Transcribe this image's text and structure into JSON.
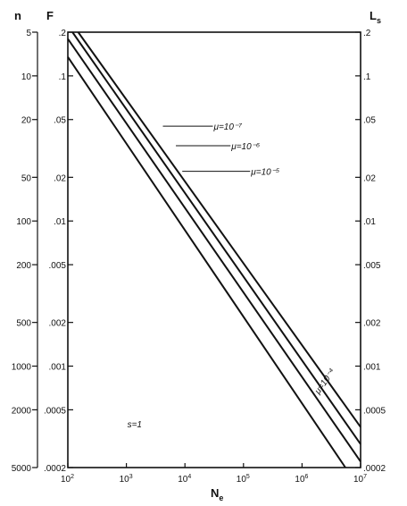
{
  "chart_data": {
    "type": "line",
    "x_scale": "log",
    "y_scale": "log",
    "xlim": [
      100,
      10000000
    ],
    "ylim": [
      0.0002,
      0.2
    ],
    "x_ticks": [
      {
        "value": 100,
        "base": "10",
        "exp": "2"
      },
      {
        "value": 1000,
        "base": "10",
        "exp": "3"
      },
      {
        "value": 10000,
        "base": "10",
        "exp": "4"
      },
      {
        "value": 100000,
        "base": "10",
        "exp": "5"
      },
      {
        "value": 1000000,
        "base": "10",
        "exp": "6"
      },
      {
        "value": 10000000,
        "base": "10",
        "exp": "7"
      }
    ],
    "x_label_main": "N",
    "x_label_sub": "e",
    "left_axis_n": {
      "title": "n",
      "ticks": [
        {
          "y": 0.2,
          "label": "5"
        },
        {
          "y": 0.1,
          "label": "10"
        },
        {
          "y": 0.05,
          "label": "20"
        },
        {
          "y": 0.02,
          "label": "50"
        },
        {
          "y": 0.01,
          "label": "100"
        },
        {
          "y": 0.005,
          "label": "200"
        },
        {
          "y": 0.002,
          "label": "500"
        },
        {
          "y": 0.001,
          "label": "1000"
        },
        {
          "y": 0.0005,
          "label": "2000"
        },
        {
          "y": 0.0002,
          "label": "5000"
        }
      ]
    },
    "left_axis_F": {
      "title": "F",
      "ticks": [
        {
          "y": 0.2,
          "label": ".2"
        },
        {
          "y": 0.1,
          "label": ".1"
        },
        {
          "y": 0.05,
          "label": ".05"
        },
        {
          "y": 0.02,
          "label": ".02"
        },
        {
          "y": 0.01,
          "label": ".01"
        },
        {
          "y": 0.005,
          "label": ".005"
        },
        {
          "y": 0.002,
          "label": ".002"
        },
        {
          "y": 0.001,
          "label": ".001"
        },
        {
          "y": 0.0005,
          "label": ".0005"
        },
        {
          "y": 0.0002,
          "label": ".0002"
        }
      ]
    },
    "right_axis_Ls": {
      "title_main": "L",
      "title_sub": "s",
      "ticks": [
        {
          "y": 0.2,
          "label": ".2"
        },
        {
          "y": 0.1,
          "label": ".1"
        },
        {
          "y": 0.05,
          "label": ".05"
        },
        {
          "y": 0.02,
          "label": ".02"
        },
        {
          "y": 0.01,
          "label": ".01"
        },
        {
          "y": 0.005,
          "label": ".005"
        },
        {
          "y": 0.002,
          "label": ".002"
        },
        {
          "y": 0.001,
          "label": ".001"
        },
        {
          "y": 0.0005,
          "label": ".0005"
        },
        {
          "y": 0.0002,
          "label": ".0002"
        }
      ]
    },
    "series": [
      {
        "key": "mu-1e-7",
        "points": [
          [
            150,
            0.2
          ],
          [
            10000000,
            0.00038
          ]
        ]
      },
      {
        "key": "mu-1e-6",
        "points": [
          [
            120,
            0.2
          ],
          [
            10000000,
            0.00029
          ]
        ]
      },
      {
        "key": "mu-1e-5",
        "points": [
          [
            100,
            0.18
          ],
          [
            10000000,
            0.00022
          ]
        ]
      },
      {
        "key": "mu-1e-4",
        "points": [
          [
            100,
            0.135
          ],
          [
            5500000,
            0.0002
          ]
        ]
      }
    ],
    "annotations": [
      {
        "text": "μ=10⁻⁷",
        "x": 30000,
        "y": 0.045,
        "leader_to": [
          4200,
          0.045
        ]
      },
      {
        "text": "μ=10⁻⁶",
        "x": 60000,
        "y": 0.033,
        "leader_to": [
          7000,
          0.033
        ]
      },
      {
        "text": "μ=10⁻⁵",
        "x": 130000,
        "y": 0.022,
        "leader_to": [
          9000,
          0.022
        ]
      },
      {
        "text": "μ=10⁻⁴",
        "x": 1700000,
        "y": 0.00065,
        "rotate": -55
      },
      {
        "text": "s=1",
        "x": 1000,
        "y": 0.0004
      }
    ]
  }
}
